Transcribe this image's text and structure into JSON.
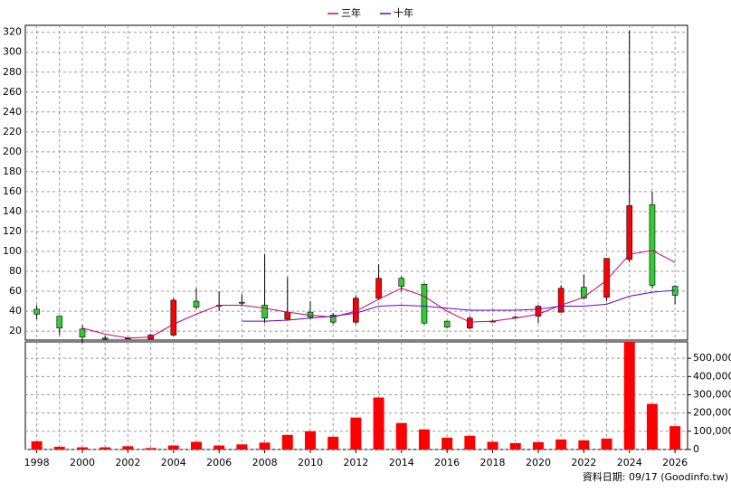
{
  "chart_data": {
    "type": "candlestick",
    "x": [
      1998,
      1999,
      2000,
      2001,
      2002,
      2003,
      2004,
      2005,
      2006,
      2007,
      2008,
      2009,
      2010,
      2011,
      2012,
      2013,
      2014,
      2015,
      2016,
      2017,
      2018,
      2019,
      2020,
      2021,
      2022,
      2023,
      2024,
      2025,
      2026
    ],
    "open": [
      42,
      35,
      22,
      13,
      13,
      12,
      16,
      50,
      46,
      49,
      46,
      32,
      39,
      36,
      29,
      53,
      73,
      67,
      30,
      23,
      30,
      34,
      35,
      39,
      64,
      54,
      92,
      147,
      65
    ],
    "high": [
      46,
      35,
      26,
      15,
      14,
      17,
      53,
      63,
      60,
      57,
      97,
      74,
      50,
      38,
      56,
      87,
      75,
      68,
      30,
      35,
      31,
      35,
      46,
      66,
      77,
      93,
      322,
      160,
      66
    ],
    "low": [
      32,
      16,
      8,
      11,
      12,
      12,
      15,
      42,
      40,
      45,
      28,
      31,
      32,
      27,
      27,
      51,
      60,
      27,
      23,
      22,
      29,
      33,
      28,
      39,
      52,
      50,
      89,
      63,
      47
    ],
    "close": [
      37,
      23,
      14,
      12,
      13,
      16,
      51,
      44,
      45,
      48,
      33,
      39,
      34,
      29,
      53,
      73,
      65,
      28,
      24,
      33,
      30,
      34,
      45,
      63,
      53,
      93,
      146,
      66,
      56
    ],
    "up_color": "#ff0000",
    "down_color": "#33cc33",
    "series": [
      {
        "name": "三年",
        "color": "#cc0066",
        "values": [
          null,
          null,
          23,
          17,
          13,
          14,
          27,
          37,
          46,
          46,
          43,
          39,
          36,
          34,
          40,
          52,
          63,
          55,
          40,
          29,
          30,
          33,
          37,
          46,
          54,
          71,
          97,
          101,
          89
        ]
      },
      {
        "name": "十年",
        "color": "#6600cc",
        "values": [
          null,
          null,
          null,
          null,
          null,
          null,
          null,
          null,
          null,
          30,
          30,
          31,
          33,
          35,
          38,
          45,
          46,
          45,
          43,
          41,
          41,
          41,
          42,
          45,
          45,
          47,
          55,
          59,
          61
        ]
      }
    ],
    "xlim": [
      1997.5,
      2026.55
    ],
    "xticks": [
      1998,
      2000,
      2002,
      2004,
      2006,
      2008,
      2010,
      2012,
      2014,
      2016,
      2018,
      2020,
      2022,
      2024,
      2026
    ],
    "ylim": [
      11,
      327
    ],
    "yticks": [
      20,
      40,
      60,
      80,
      100,
      120,
      140,
      160,
      180,
      200,
      220,
      240,
      260,
      280,
      300,
      320
    ],
    "grid": true,
    "volume": {
      "color": "#ff0000",
      "values": [
        45000,
        15000,
        12000,
        12000,
        18000,
        8000,
        22000,
        42000,
        22000,
        28000,
        38000,
        80000,
        100000,
        70000,
        175000,
        285000,
        145000,
        110000,
        65000,
        75000,
        42000,
        35000,
        40000,
        55000,
        50000,
        60000,
        590000,
        250000,
        128000
      ],
      "ylim": [
        0,
        590000
      ],
      "yticks": [
        0,
        {
          "value": 100000,
          "label": "100,000"
        },
        {
          "value": 200000,
          "label": "200,000"
        },
        {
          "value": 300000,
          "label": "300,000"
        },
        {
          "value": 400000,
          "label": "400,000"
        },
        {
          "value": 500000,
          "label": "500,000"
        }
      ]
    },
    "footnote": "資料日期: 09/17 (Goodinfo.tw)"
  }
}
